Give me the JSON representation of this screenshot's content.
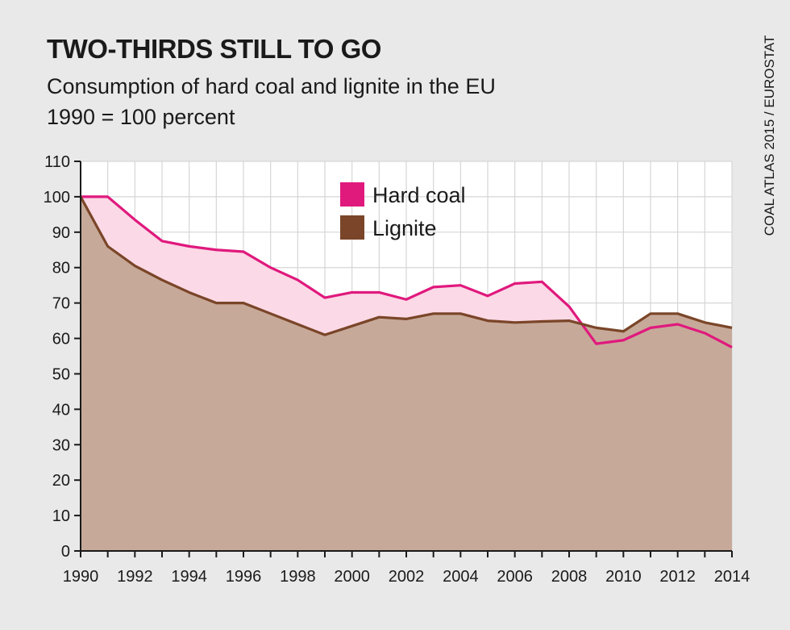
{
  "header": {
    "title": "TWO-THIRDS STILL TO GO",
    "subtitle_line1": "Consumption of hard coal and lignite in the EU",
    "subtitle_line2": "1990 = 100 percent"
  },
  "source": "COAL ATLAS 2015 / EUROSTAT",
  "colors": {
    "background": "#e9e9e9",
    "plot_background": "#ffffff",
    "grid": "#d6d6d6",
    "hard_coal": "#e0197d",
    "hard_coal_fill": "#fbd9e6",
    "lignite": "#7a4528",
    "lignite_fill": "#c7a999"
  },
  "chart_data": {
    "type": "area",
    "title": "TWO-THIRDS STILL TO GO",
    "subtitle": "Consumption of hard coal and lignite in the EU",
    "ylabel": "1990 = 100 percent",
    "x": [
      1990,
      1991,
      1992,
      1993,
      1994,
      1995,
      1996,
      1997,
      1998,
      1999,
      2000,
      2001,
      2002,
      2003,
      2004,
      2005,
      2006,
      2007,
      2008,
      2009,
      2010,
      2011,
      2012,
      2013,
      2014
    ],
    "xlim": [
      1990,
      2014
    ],
    "ylim": [
      0,
      110
    ],
    "x_ticks": [
      "1990",
      "1992",
      "1994",
      "1996",
      "1998",
      "2000",
      "2002",
      "2004",
      "2006",
      "2008",
      "2010",
      "2012",
      "2014"
    ],
    "y_ticks": [
      "0",
      "10",
      "20",
      "30",
      "40",
      "50",
      "60",
      "70",
      "80",
      "90",
      "100",
      "110"
    ],
    "grid": true,
    "legend_position": "top-center",
    "series": [
      {
        "name": "Hard coal",
        "color": "#e0197d",
        "values": [
          100,
          100,
          93.5,
          87.5,
          86,
          85,
          84.5,
          80,
          76.5,
          71.5,
          73,
          73,
          71,
          74.5,
          75,
          72,
          75.5,
          76,
          69,
          58.5,
          59.5,
          63,
          64,
          61.5,
          57.5
        ]
      },
      {
        "name": "Lignite",
        "color": "#7a4528",
        "values": [
          100,
          86,
          80.5,
          76.5,
          73,
          70,
          70,
          67,
          64,
          61,
          63.5,
          66,
          65.5,
          67,
          67,
          65,
          64.5,
          64.8,
          65,
          63,
          62,
          67,
          67,
          64.5,
          63
        ]
      }
    ]
  }
}
